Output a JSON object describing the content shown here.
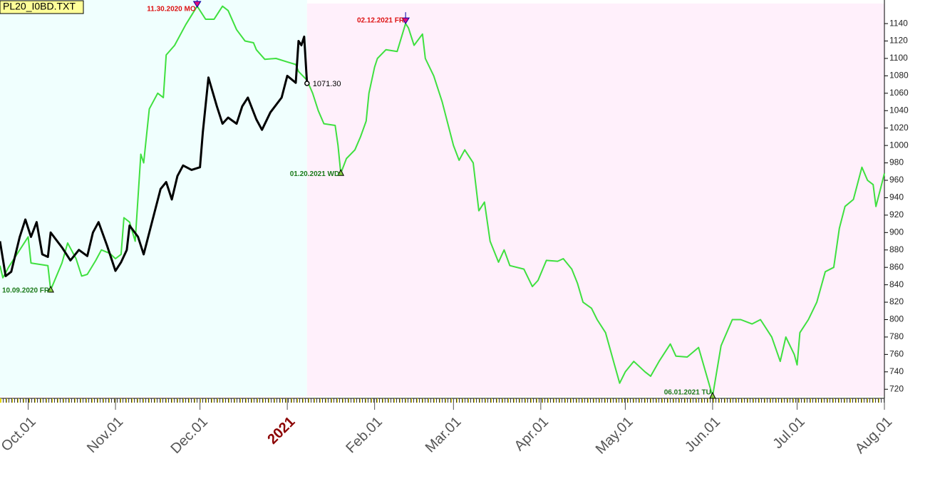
{
  "chart_data": {
    "type": "line",
    "title": "PL20_I0BD.TXT",
    "xlim": [
      "2020-09-21",
      "2021-08-01"
    ],
    "ylim": [
      712,
      1163
    ],
    "yticks": [
      720,
      740,
      760,
      780,
      800,
      820,
      840,
      860,
      880,
      900,
      920,
      940,
      960,
      980,
      1000,
      1020,
      1040,
      1060,
      1080,
      1100,
      1120,
      1140
    ],
    "xticks": [
      {
        "value": "2020-10-01",
        "label": "Oct.01",
        "color": "#555555"
      },
      {
        "value": "2020-11-01",
        "label": "Nov.01",
        "color": "#555555"
      },
      {
        "value": "2020-12-01",
        "label": "Dec.01",
        "color": "#555555"
      },
      {
        "value": "2021-01-01",
        "label": "2021",
        "color": "#8b0000"
      },
      {
        "value": "2021-02-01",
        "label": "Feb.01",
        "color": "#555555"
      },
      {
        "value": "2021-03-01",
        "label": "Mar.01",
        "color": "#555555"
      },
      {
        "value": "2021-04-01",
        "label": "Apr.01",
        "color": "#555555"
      },
      {
        "value": "2021-05-01",
        "label": "May.01",
        "color": "#555555"
      },
      {
        "value": "2021-06-01",
        "label": "Jun.01",
        "color": "#555555"
      },
      {
        "value": "2021-07-01",
        "label": "Jul.01",
        "color": "#555555"
      },
      {
        "value": "2021-08-01",
        "label": "Aug.01",
        "color": "#555555"
      }
    ],
    "series": [
      {
        "color": "#3fe03f",
        "width": 2,
        "x": [
          "2020-09-21",
          "2020-09-22",
          "2020-09-24",
          "2020-09-28",
          "2020-10-01",
          "2020-10-02",
          "2020-10-08",
          "2020-10-09",
          "2020-10-13",
          "2020-10-15",
          "2020-10-18",
          "2020-10-20",
          "2020-10-22",
          "2020-10-25",
          "2020-10-27",
          "2020-10-30",
          "2020-11-01",
          "2020-11-03",
          "2020-11-04",
          "2020-11-06",
          "2020-11-08",
          "2020-11-10",
          "2020-11-11",
          "2020-11-13",
          "2020-11-16",
          "2020-11-18",
          "2020-11-19",
          "2020-11-22",
          "2020-11-26",
          "2020-11-30",
          "2020-12-03",
          "2020-12-06",
          "2020-12-07",
          "2020-12-09",
          "2020-12-11",
          "2020-12-14",
          "2020-12-17",
          "2020-12-20",
          "2020-12-21",
          "2020-12-24",
          "2020-12-28",
          "2021-01-01",
          "2021-01-04",
          "2021-01-05",
          "2021-01-08",
          "2021-01-10",
          "2021-01-12",
          "2021-01-14",
          "2021-01-18",
          "2021-01-19",
          "2021-01-20",
          "2021-01-22",
          "2021-01-25",
          "2021-01-27",
          "2021-01-29",
          "2021-01-30",
          "2021-02-01",
          "2021-02-02",
          "2021-02-05",
          "2021-02-09",
          "2021-02-12",
          "2021-02-13",
          "2021-02-15",
          "2021-02-18",
          "2021-02-19",
          "2021-02-22",
          "2021-02-25",
          "2021-03-01",
          "2021-03-03",
          "2021-03-05",
          "2021-03-08",
          "2021-03-10",
          "2021-03-12",
          "2021-03-14",
          "2021-03-17",
          "2021-03-19",
          "2021-03-21",
          "2021-03-26",
          "2021-03-29",
          "2021-03-31",
          "2021-04-03",
          "2021-04-07",
          "2021-04-09",
          "2021-04-12",
          "2021-04-14",
          "2021-04-16",
          "2021-04-19",
          "2021-04-21",
          "2021-04-24",
          "2021-04-27",
          "2021-04-29",
          "2021-05-01",
          "2021-05-04",
          "2021-05-08",
          "2021-05-10",
          "2021-05-13",
          "2021-05-17",
          "2021-05-19",
          "2021-05-23",
          "2021-05-27",
          "2021-06-01",
          "2021-06-04",
          "2021-06-08",
          "2021-06-11",
          "2021-06-15",
          "2021-06-18",
          "2021-06-22",
          "2021-06-25",
          "2021-06-27",
          "2021-06-30",
          "2021-07-01",
          "2021-07-02",
          "2021-07-05",
          "2021-07-08",
          "2021-07-11",
          "2021-07-14",
          "2021-07-16",
          "2021-07-18",
          "2021-07-21",
          "2021-07-24",
          "2021-07-26",
          "2021-07-28",
          "2021-07-29",
          "2021-07-31",
          "2021-08-01"
        ],
        "values": [
          862,
          848,
          860,
          880,
          895,
          865,
          862,
          834,
          865,
          888,
          870,
          850,
          852,
          868,
          880,
          876,
          870,
          875,
          917,
          912,
          890,
          990,
          980,
          1042,
          1060,
          1055,
          1104,
          1115,
          1139,
          1160,
          1145,
          1145,
          1150,
          1160,
          1155,
          1133,
          1120,
          1118,
          1110,
          1099,
          1100,
          1096,
          1093,
          1085,
          1075,
          1060,
          1040,
          1025,
          1023,
          1000,
          968,
          985,
          995,
          1010,
          1028,
          1060,
          1090,
          1100,
          1110,
          1108,
          1140,
          1135,
          1115,
          1128,
          1100,
          1080,
          1050,
          1000,
          983,
          995,
          980,
          925,
          935,
          890,
          866,
          880,
          862,
          858,
          838,
          845,
          868,
          867,
          870,
          858,
          842,
          820,
          813,
          800,
          785,
          750,
          727,
          740,
          752,
          740,
          735,
          752,
          772,
          758,
          757,
          768,
          712,
          770,
          800,
          800,
          795,
          800,
          780,
          752,
          780,
          760,
          748,
          785,
          800,
          820,
          855,
          860,
          905,
          930,
          938,
          975,
          960,
          955,
          930,
          955,
          968
        ]
      },
      {
        "color": "#000000",
        "width": 3,
        "x": [
          "2020-09-21",
          "2020-09-23",
          "2020-09-25",
          "2020-09-28",
          "2020-09-30",
          "2020-10-02",
          "2020-10-04",
          "2020-10-06",
          "2020-10-08",
          "2020-10-09",
          "2020-10-13",
          "2020-10-16",
          "2020-10-19",
          "2020-10-22",
          "2020-10-24",
          "2020-10-26",
          "2020-10-29",
          "2020-11-01",
          "2020-11-03",
          "2020-11-05",
          "2020-11-06",
          "2020-11-09",
          "2020-11-11",
          "2020-11-13",
          "2020-11-17",
          "2020-11-19",
          "2020-11-21",
          "2020-11-23",
          "2020-11-25",
          "2020-11-28",
          "2020-12-01",
          "2020-12-02",
          "2020-12-04",
          "2020-12-07",
          "2020-12-09",
          "2020-12-11",
          "2020-12-14",
          "2020-12-16",
          "2020-12-18",
          "2020-12-21",
          "2020-12-23",
          "2020-12-26",
          "2020-12-30",
          "2021-01-01",
          "2021-01-04",
          "2021-01-05",
          "2021-01-06",
          "2021-01-07",
          "2021-01-08"
        ],
        "values": [
          890,
          850,
          855,
          895,
          915,
          895,
          912,
          875,
          872,
          900,
          883,
          868,
          880,
          873,
          900,
          912,
          885,
          856,
          866,
          880,
          908,
          895,
          875,
          900,
          950,
          958,
          938,
          965,
          977,
          972,
          975,
          1015,
          1078,
          1045,
          1025,
          1032,
          1025,
          1045,
          1055,
          1030,
          1018,
          1038,
          1055,
          1080,
          1072,
          1120,
          1115,
          1125,
          1071.3
        ]
      }
    ],
    "last_label": "1071.30",
    "annotations": [
      {
        "x": "2020-10-09",
        "y": 834,
        "label": "10.09.2020 FR",
        "color": "#1a7a1a",
        "marker": "up"
      },
      {
        "x": "2020-11-30",
        "y": 1160,
        "label": "11.30.2020 MO",
        "color": "#dd1111",
        "marker": "down"
      },
      {
        "x": "2021-01-20",
        "y": 968,
        "label": "01.20.2021 WD",
        "color": "#1a7a1a",
        "marker": "up"
      },
      {
        "x": "2021-02-12",
        "y": 1140,
        "label": "02.12.2021 FR",
        "color": "#dd1111",
        "marker": "down"
      },
      {
        "x": "2021-06-01",
        "y": 712,
        "label": "06.01.2021 TU",
        "color": "#1a7a1a",
        "marker": "up"
      }
    ]
  }
}
